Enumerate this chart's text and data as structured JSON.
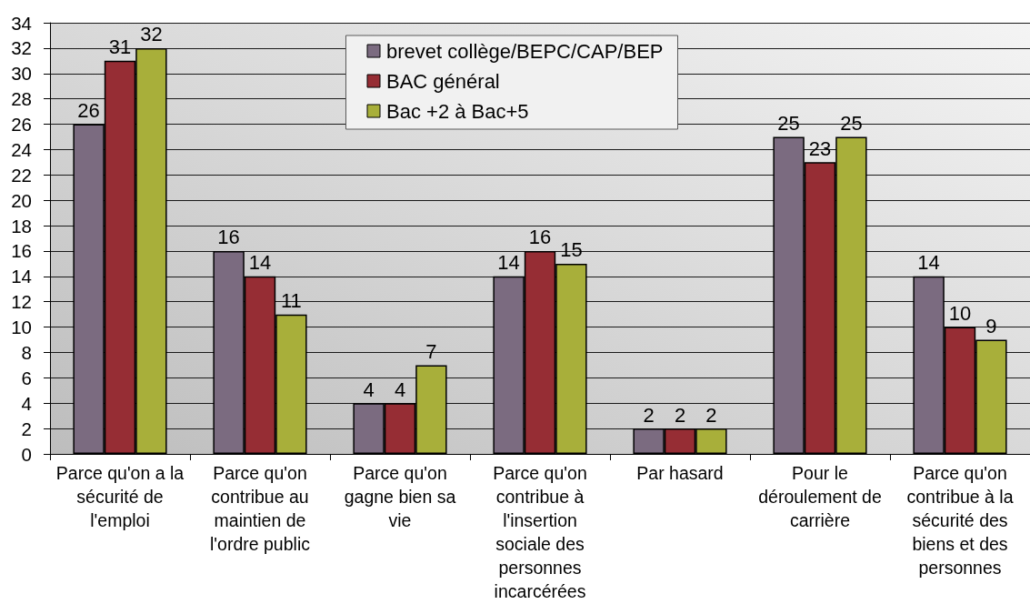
{
  "chart_data": {
    "type": "bar",
    "categories": [
      "Parce qu'on a la sécurité de l'emploi",
      "Parce qu'on contribue au maintien de l'ordre public",
      "Parce qu'on gagne bien sa vie",
      "Parce qu'on contribue à l'insertion sociale des personnes incarcérées",
      "Par hasard",
      "Pour le déroulement de carrière",
      "Parce qu'on contribue à la sécurité des biens et des personnes"
    ],
    "series": [
      {
        "name": "brevet collège/BEPC/CAP/BEP",
        "color": "#7b6b80",
        "values": [
          26,
          16,
          4,
          14,
          2,
          25,
          14
        ]
      },
      {
        "name": "BAC général",
        "color": "#962d34",
        "values": [
          31,
          14,
          4,
          16,
          2,
          23,
          10
        ]
      },
      {
        "name": "Bac +2 à Bac+5",
        "color": "#a8af3a",
        "values": [
          32,
          11,
          7,
          15,
          2,
          25,
          9
        ]
      }
    ],
    "ylim": [
      0,
      34
    ],
    "yticks": [
      0,
      2,
      4,
      6,
      8,
      10,
      12,
      14,
      16,
      18,
      20,
      22,
      24,
      26,
      28,
      30,
      32,
      34
    ],
    "grid": "y",
    "legend": "top",
    "data_labels": true
  }
}
